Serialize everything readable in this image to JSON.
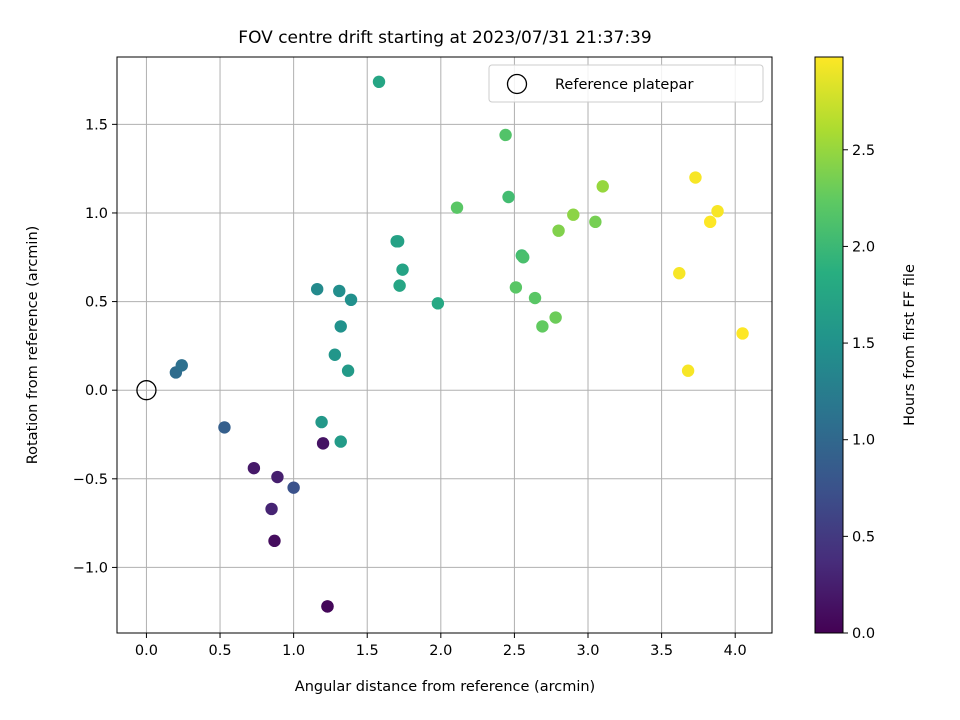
{
  "chart_data": {
    "type": "scatter",
    "title": "FOV centre drift starting at 2023/07/31 21:37:39",
    "xlabel": "Angular distance from reference (arcmin)",
    "ylabel": "Rotation from reference (arcmin)",
    "xlim": [
      -0.2,
      4.25
    ],
    "ylim": [
      -1.37,
      1.88
    ],
    "xticks": [
      0.0,
      0.5,
      1.0,
      1.5,
      2.0,
      2.5,
      3.0,
      3.5,
      4.0
    ],
    "xtick_labels": [
      "0.0",
      "0.5",
      "1.0",
      "1.5",
      "2.0",
      "2.5",
      "3.0",
      "3.5",
      "4.0"
    ],
    "yticks": [
      -1.0,
      -0.5,
      0.0,
      0.5,
      1.0,
      1.5
    ],
    "ytick_labels": [
      "−1.0",
      "−0.5",
      "0.0",
      "0.5",
      "1.0",
      "1.5"
    ],
    "grid": true,
    "legend": {
      "position": "top-right",
      "entries": [
        "Reference platepar"
      ]
    },
    "reference_point": {
      "name": "Reference platepar",
      "x": 0.0,
      "y": 0.0
    },
    "colorbar": {
      "label": "Hours from first FF file",
      "colormap": "viridis",
      "range": [
        0.0,
        2.98
      ],
      "ticks": [
        0.0,
        0.5,
        1.0,
        1.5,
        2.0,
        2.5
      ],
      "tick_labels": [
        "0.0",
        "0.5",
        "1.0",
        "1.5",
        "2.0",
        "2.5"
      ]
    },
    "points": [
      {
        "x": 1.23,
        "y": -1.22,
        "c": 0.0
      },
      {
        "x": 1.23,
        "y": -1.22,
        "c": 0.05
      },
      {
        "x": 0.87,
        "y": -0.85,
        "c": 0.1
      },
      {
        "x": 1.2,
        "y": -0.3,
        "c": 0.15
      },
      {
        "x": 0.73,
        "y": -0.44,
        "c": 0.2
      },
      {
        "x": 0.89,
        "y": -0.49,
        "c": 0.25
      },
      {
        "x": 0.85,
        "y": -0.67,
        "c": 0.3
      },
      {
        "x": 1.0,
        "y": -0.55,
        "c": 0.75
      },
      {
        "x": 0.53,
        "y": -0.21,
        "c": 0.9
      },
      {
        "x": 0.2,
        "y": 0.1,
        "c": 1.05
      },
      {
        "x": 0.24,
        "y": 0.14,
        "c": 1.1
      },
      {
        "x": 1.16,
        "y": 0.57,
        "c": 1.4
      },
      {
        "x": 1.31,
        "y": 0.56,
        "c": 1.45
      },
      {
        "x": 1.39,
        "y": 0.51,
        "c": 1.48
      },
      {
        "x": 1.32,
        "y": 0.36,
        "c": 1.5
      },
      {
        "x": 1.28,
        "y": 0.2,
        "c": 1.55
      },
      {
        "x": 1.37,
        "y": 0.11,
        "c": 1.6
      },
      {
        "x": 1.19,
        "y": -0.18,
        "c": 1.58
      },
      {
        "x": 1.32,
        "y": -0.29,
        "c": 1.62
      },
      {
        "x": 1.71,
        "y": 0.84,
        "c": 1.68
      },
      {
        "x": 1.7,
        "y": 0.84,
        "c": 1.7
      },
      {
        "x": 1.74,
        "y": 0.68,
        "c": 1.72
      },
      {
        "x": 1.72,
        "y": 0.59,
        "c": 1.75
      },
      {
        "x": 1.98,
        "y": 0.49,
        "c": 1.78
      },
      {
        "x": 1.58,
        "y": 1.74,
        "c": 1.75
      },
      {
        "x": 2.11,
        "y": 1.03,
        "c": 2.2
      },
      {
        "x": 2.44,
        "y": 1.44,
        "c": 2.15
      },
      {
        "x": 2.46,
        "y": 1.09,
        "c": 2.05
      },
      {
        "x": 2.55,
        "y": 0.76,
        "c": 2.05
      },
      {
        "x": 2.56,
        "y": 0.75,
        "c": 2.1
      },
      {
        "x": 2.51,
        "y": 0.58,
        "c": 2.2
      },
      {
        "x": 2.64,
        "y": 0.52,
        "c": 2.2
      },
      {
        "x": 2.69,
        "y": 0.36,
        "c": 2.25
      },
      {
        "x": 2.78,
        "y": 0.41,
        "c": 2.3
      },
      {
        "x": 2.8,
        "y": 0.9,
        "c": 2.4
      },
      {
        "x": 2.9,
        "y": 0.99,
        "c": 2.45
      },
      {
        "x": 3.05,
        "y": 0.95,
        "c": 2.35
      },
      {
        "x": 3.1,
        "y": 1.15,
        "c": 2.5
      },
      {
        "x": 3.73,
        "y": 1.2,
        "c": 2.95
      },
      {
        "x": 3.88,
        "y": 1.01,
        "c": 2.95
      },
      {
        "x": 3.83,
        "y": 0.95,
        "c": 2.98
      },
      {
        "x": 3.62,
        "y": 0.66,
        "c": 2.95
      },
      {
        "x": 3.68,
        "y": 0.11,
        "c": 2.95
      },
      {
        "x": 4.05,
        "y": 0.32,
        "c": 2.98
      }
    ]
  }
}
